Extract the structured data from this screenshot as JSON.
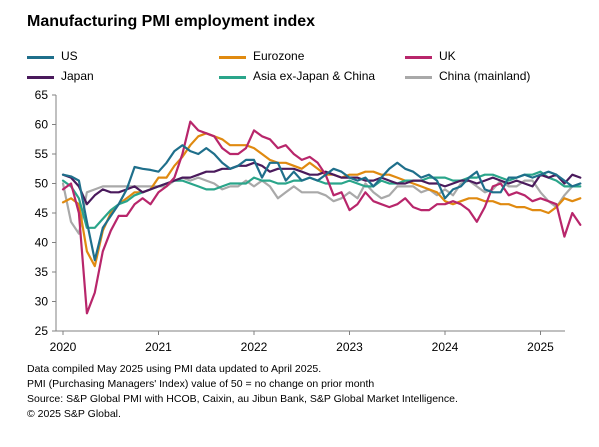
{
  "title": "Manufacturing PMI employment index",
  "footnotes": [
    "Data compiled May 2025 using PMI data updated to April 2025.",
    "PMI (Purchasing Managers' Index) value of 50 = no change on prior month",
    "Source: S&P Global PMI with HCOB, Caixin, au Jibun Bank, S&P Global Market Intelligence.",
    "© 2025 S&P Global."
  ],
  "chart_data": {
    "type": "line",
    "title": "Manufacturing PMI employment index",
    "ylim": [
      25,
      65
    ],
    "yticks": [
      25,
      30,
      35,
      40,
      45,
      50,
      55,
      60,
      65
    ],
    "xticks": [
      "2020",
      "2021",
      "2022",
      "2023",
      "2024",
      "2025"
    ],
    "x_start": "2020-01",
    "x_end": "2025-04",
    "grid": false,
    "legend_position": "top",
    "series": [
      {
        "name": "US",
        "color": "#1f6f8b",
        "values": [
          51.5,
          51.2,
          50.5,
          43.5,
          37.0,
          42.5,
          44.5,
          46.5,
          49.0,
          52.8,
          52.5,
          52.3,
          52.0,
          53.5,
          55.5,
          56.5,
          55.5,
          55.0,
          56.0,
          55.0,
          53.5,
          52.5,
          53.0,
          54.0,
          54.0,
          51.0,
          53.5,
          53.5,
          50.5,
          52.0,
          50.5,
          51.0,
          50.5,
          51.5,
          52.5,
          52.0,
          51.0,
          50.5,
          51.0,
          49.5,
          51.0,
          52.5,
          53.5,
          52.5,
          52.0,
          51.0,
          51.5,
          50.5,
          47.5,
          49.0,
          49.5,
          51.0,
          52.0,
          49.0,
          48.5,
          48.5,
          51.0,
          51.0,
          51.5,
          51.0,
          51.5,
          52.0,
          51.5,
          50.5,
          49.5,
          50.0
        ]
      },
      {
        "name": "Eurozone",
        "color": "#e08a10",
        "values": [
          46.8,
          47.5,
          46.5,
          38.5,
          36.0,
          42.0,
          45.0,
          46.5,
          47.5,
          48.5,
          48.5,
          49.0,
          51.0,
          51.0,
          53.0,
          54.5,
          56.5,
          58.0,
          58.5,
          58.0,
          57.5,
          56.5,
          56.5,
          56.5,
          56.0,
          55.0,
          54.0,
          53.5,
          53.5,
          53.0,
          52.5,
          53.5,
          52.5,
          51.5,
          51.5,
          51.0,
          51.5,
          51.5,
          52.0,
          52.0,
          51.5,
          51.5,
          51.0,
          50.5,
          50.0,
          49.5,
          49.0,
          48.5,
          47.0,
          46.5,
          47.0,
          47.5,
          47.5,
          47.0,
          47.0,
          46.5,
          46.5,
          46.0,
          46.0,
          45.5,
          45.5,
          45.0,
          46.0,
          47.5,
          47.0,
          47.5
        ]
      },
      {
        "name": "UK",
        "color": "#b8266b",
        "values": [
          49.0,
          50.0,
          45.0,
          28.0,
          31.5,
          38.5,
          42.0,
          44.5,
          44.5,
          46.5,
          47.5,
          46.5,
          48.5,
          49.5,
          51.0,
          55.0,
          60.5,
          59.0,
          58.5,
          58.0,
          56.0,
          55.0,
          55.0,
          56.0,
          59.0,
          58.0,
          57.5,
          56.0,
          56.5,
          55.0,
          54.0,
          54.5,
          53.5,
          51.5,
          48.0,
          48.5,
          45.5,
          46.5,
          48.5,
          47.0,
          46.5,
          46.0,
          46.5,
          47.5,
          46.0,
          45.5,
          45.5,
          46.5,
          46.5,
          47.0,
          46.5,
          45.5,
          43.5,
          46.0,
          49.5,
          50.0,
          48.0,
          48.5,
          48.0,
          47.0,
          47.5,
          47.0,
          46.5,
          41.0,
          45.0,
          43.0
        ]
      },
      {
        "name": "Japan",
        "color": "#4a1a5c",
        "values": [
          51.5,
          51.0,
          49.5,
          46.5,
          48.0,
          49.0,
          48.5,
          48.5,
          49.0,
          49.5,
          48.5,
          49.0,
          49.5,
          50.0,
          50.5,
          51.0,
          51.0,
          51.5,
          52.0,
          52.0,
          52.5,
          52.5,
          53.0,
          53.0,
          53.5,
          53.0,
          52.0,
          52.5,
          52.5,
          52.5,
          52.0,
          51.5,
          51.5,
          52.0,
          51.5,
          51.0,
          51.0,
          51.0,
          50.5,
          50.5,
          51.0,
          50.5,
          50.0,
          50.0,
          50.5,
          50.5,
          50.0,
          50.0,
          49.5,
          50.0,
          50.5,
          50.5,
          50.0,
          50.5,
          51.0,
          50.5,
          50.0,
          50.5,
          50.0,
          49.5,
          51.5,
          51.0,
          51.5,
          50.0,
          51.5,
          51.0
        ]
      },
      {
        "name": "Asia ex-Japan & China",
        "color": "#2aa58a",
        "values": [
          50.5,
          49.5,
          47.5,
          42.5,
          42.5,
          44.0,
          45.5,
          46.5,
          47.0,
          48.0,
          48.5,
          49.0,
          49.5,
          50.0,
          50.5,
          50.5,
          50.0,
          49.5,
          49.0,
          49.0,
          49.5,
          50.0,
          50.0,
          50.0,
          51.0,
          50.5,
          50.5,
          50.0,
          50.0,
          50.5,
          50.5,
          51.0,
          50.5,
          50.0,
          50.0,
          50.0,
          50.5,
          50.0,
          49.5,
          49.5,
          50.5,
          50.0,
          50.0,
          50.5,
          50.5,
          50.5,
          51.0,
          51.0,
          51.0,
          50.5,
          50.5,
          51.0,
          51.0,
          51.5,
          51.5,
          51.0,
          50.5,
          51.0,
          51.5,
          51.5,
          52.0,
          51.0,
          50.5,
          49.5,
          49.5,
          49.5
        ]
      },
      {
        "name": "China (mainland)",
        "color": "#a9a9a9",
        "values": [
          50.0,
          43.5,
          41.5,
          48.5,
          49.0,
          49.5,
          49.5,
          49.5,
          49.5,
          49.5,
          49.5,
          49.5,
          49.5,
          49.5,
          50.5,
          51.0,
          50.5,
          51.0,
          50.5,
          50.0,
          49.0,
          49.5,
          49.5,
          50.5,
          49.5,
          50.5,
          49.5,
          47.5,
          48.5,
          49.5,
          48.5,
          48.5,
          48.5,
          48.0,
          47.0,
          47.5,
          48.5,
          47.5,
          50.0,
          48.5,
          47.5,
          48.0,
          49.5,
          49.5,
          49.5,
          48.5,
          49.0,
          48.0,
          49.0,
          48.0,
          50.0,
          50.5,
          49.5,
          48.5,
          49.0,
          50.5,
          49.5,
          49.5,
          50.5,
          50.5,
          48.5,
          47.0,
          46.0,
          48.0,
          49.5,
          50.0
        ]
      }
    ]
  }
}
